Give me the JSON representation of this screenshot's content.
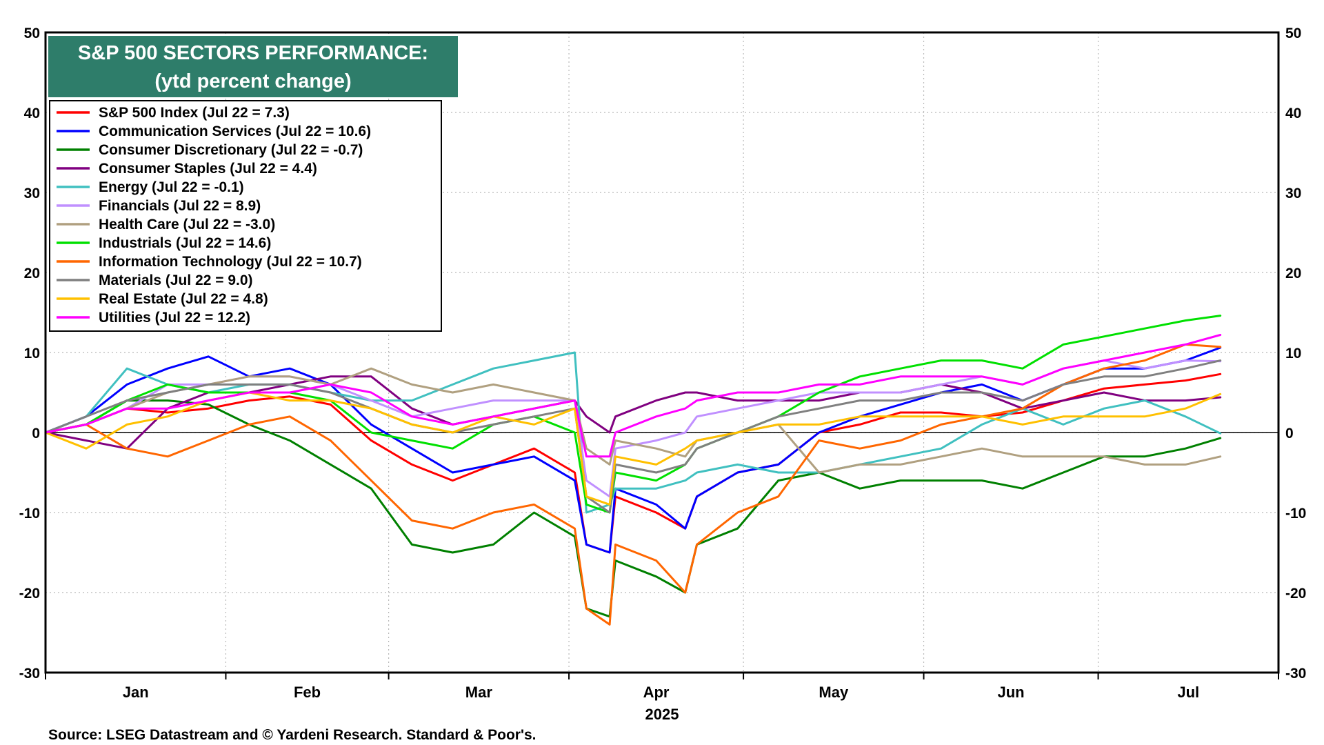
{
  "chart_data": {
    "type": "line",
    "title": "S&P 500 SECTORS PERFORMANCE:",
    "subtitle": "(ytd percent change)",
    "xlabel": "2025",
    "ylabel": "",
    "ylim": [
      -30,
      50
    ],
    "yticks": [
      -30,
      -20,
      -10,
      0,
      10,
      20,
      30,
      40,
      50
    ],
    "month_labels": [
      "Jan",
      "Feb",
      "Mar",
      "Apr",
      "May",
      "Jun",
      "Jul"
    ],
    "grid": true,
    "dual_y_axis": true,
    "legend_position": "top-left",
    "x": [
      "2025-01-01",
      "2025-01-08",
      "2025-01-15",
      "2025-01-22",
      "2025-01-29",
      "2025-02-05",
      "2025-02-12",
      "2025-02-19",
      "2025-02-26",
      "2025-03-05",
      "2025-03-12",
      "2025-03-19",
      "2025-03-26",
      "2025-04-02",
      "2025-04-04",
      "2025-04-08",
      "2025-04-09",
      "2025-04-16",
      "2025-04-21",
      "2025-04-23",
      "2025-04-30",
      "2025-05-07",
      "2025-05-14",
      "2025-05-21",
      "2025-05-28",
      "2025-06-04",
      "2025-06-11",
      "2025-06-18",
      "2025-06-25",
      "2025-07-02",
      "2025-07-09",
      "2025-07-16",
      "2025-07-22"
    ],
    "series": [
      {
        "name": "S&P 500 Index (Jul 22 = 7.3)",
        "color": "#ff0000",
        "values": [
          0,
          1,
          3,
          2.5,
          3,
          4,
          4.5,
          3.5,
          -1,
          -4,
          -6,
          -4,
          -2,
          -5,
          -14,
          -15,
          -8,
          -10,
          -12,
          -8,
          -5,
          -4,
          0,
          1,
          2.5,
          2.5,
          2,
          2.5,
          4,
          5.5,
          6,
          6.5,
          7.3
        ]
      },
      {
        "name": "Communication Services (Jul 22 = 10.6)",
        "color": "#0000ff",
        "values": [
          0,
          2,
          6,
          8,
          9.5,
          7,
          8,
          6,
          1,
          -2,
          -5,
          -4,
          -3,
          -6,
          -14,
          -15,
          -7,
          -9,
          -12,
          -8,
          -5,
          -4,
          0,
          2,
          3.5,
          5,
          6,
          4,
          6,
          8,
          8,
          9,
          10.6
        ]
      },
      {
        "name": "Consumer Discretionary (Jul 22 = -0.7)",
        "color": "#008000",
        "values": [
          0,
          1,
          4,
          4,
          3.5,
          1,
          -1,
          -4,
          -7,
          -14,
          -15,
          -14,
          -10,
          -13,
          -22,
          -23,
          -16,
          -18,
          -20,
          -14,
          -12,
          -6,
          -5,
          -7,
          -6,
          -6,
          -6,
          -7,
          -5,
          -3,
          -3,
          -2,
          -0.7
        ]
      },
      {
        "name": "Consumer Staples (Jul 22 = 4.4)",
        "color": "#800080",
        "values": [
          0,
          -1,
          -2,
          3,
          5,
          5,
          6,
          7,
          7,
          3,
          1,
          2,
          3,
          4,
          2,
          0,
          2,
          4,
          5,
          5,
          4,
          4,
          4,
          5,
          5,
          6,
          5,
          3,
          4,
          5,
          4,
          4,
          4.4
        ]
      },
      {
        "name": "Energy (Jul 22 = -0.1)",
        "color": "#40c0c0",
        "values": [
          0,
          2,
          8,
          6,
          5,
          6,
          6,
          5,
          4,
          4,
          6,
          8,
          9,
          10,
          -10,
          -9,
          -7,
          -7,
          -6,
          -5,
          -4,
          -5,
          -5,
          -4,
          -3,
          -2,
          1,
          3,
          1,
          3,
          4,
          2,
          -0.1
        ]
      },
      {
        "name": "Financials (Jul 22 = 8.9)",
        "color": "#c090ff",
        "values": [
          0,
          1,
          3,
          6,
          6,
          7,
          7,
          6,
          4,
          2,
          3,
          4,
          4,
          4,
          -6,
          -8,
          -2,
          -1,
          0,
          2,
          3,
          4,
          5,
          5,
          5,
          6,
          7,
          6,
          8,
          9,
          8,
          9,
          8.9
        ]
      },
      {
        "name": "Health Care (Jul 22 = -3.0)",
        "color": "#b0a080",
        "values": [
          0,
          1,
          3,
          5,
          6,
          7,
          7,
          6,
          8,
          6,
          5,
          6,
          5,
          4,
          -2,
          -4,
          -1,
          -2,
          -3,
          -1,
          0,
          1,
          -5,
          -4,
          -4,
          -3,
          -2,
          -3,
          -3,
          -3,
          -4,
          -4,
          -3.0
        ]
      },
      {
        "name": "Industrials (Jul 22 = 14.6)",
        "color": "#00e000",
        "values": [
          0,
          1,
          4,
          6,
          5,
          5,
          5,
          4,
          0,
          -1,
          -2,
          1,
          2,
          0,
          -9,
          -10,
          -5,
          -6,
          -4,
          -2,
          0,
          2,
          5,
          7,
          8,
          9,
          9,
          8,
          11,
          12,
          13,
          14,
          14.6
        ]
      },
      {
        "name": "Information Technology (Jul 22 = 10.7)",
        "color": "#ff6600",
        "values": [
          0,
          1,
          -2,
          -3,
          -1,
          1,
          2,
          -1,
          -6,
          -11,
          -12,
          -10,
          -9,
          -12,
          -22,
          -24,
          -14,
          -16,
          -20,
          -14,
          -10,
          -8,
          -1,
          -2,
          -1,
          1,
          2,
          3,
          6,
          8,
          9,
          11,
          10.7
        ]
      },
      {
        "name": "Materials (Jul 22 = 9.0)",
        "color": "#808080",
        "values": [
          0,
          2,
          4,
          5,
          6,
          6,
          6,
          5,
          3,
          1,
          0,
          1,
          2,
          3,
          -8,
          -10,
          -4,
          -5,
          -4,
          -2,
          0,
          2,
          3,
          4,
          4,
          5,
          5,
          4,
          6,
          7,
          7,
          8,
          9.0
        ]
      },
      {
        "name": "Real Estate (Jul 22 = 4.8)",
        "color": "#ffc000",
        "values": [
          0,
          -2,
          1,
          2,
          4,
          5,
          4,
          4,
          3,
          1,
          0,
          2,
          1,
          3,
          -8,
          -9,
          -3,
          -4,
          -2,
          -1,
          0,
          1,
          1,
          2,
          2,
          2,
          2,
          1,
          2,
          2,
          2,
          3,
          4.8
        ]
      },
      {
        "name": "Utilities (Jul 22 = 12.2)",
        "color": "#ff00ff",
        "values": [
          0,
          1,
          3,
          3,
          4,
          5,
          5,
          6,
          5,
          2,
          1,
          2,
          3,
          4,
          -3,
          -3,
          0,
          2,
          3,
          4,
          5,
          5,
          6,
          6,
          7,
          7,
          7,
          6,
          8,
          9,
          10,
          11,
          12.2
        ]
      }
    ]
  },
  "source": "Source: LSEG Datastream and © Yardeni Research. Standard & Poor's."
}
